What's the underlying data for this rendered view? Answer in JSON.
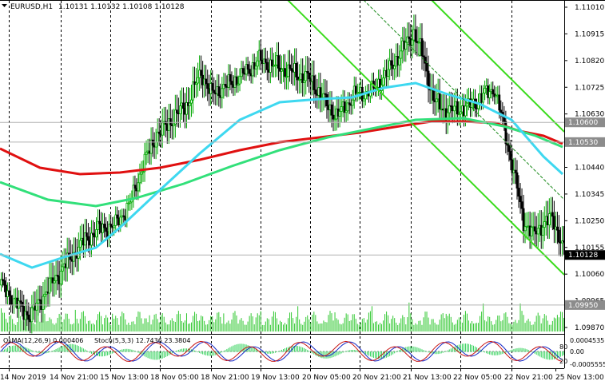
{
  "header": {
    "symbol": "EURUSD,H1",
    "ohlc": "1.10131 1.10132 1.10108 1.10128"
  },
  "price_axis": {
    "labels": [
      "1.11010",
      "1.10915",
      "1.10820",
      "1.10725",
      "1.10630",
      "1.10440",
      "1.10345",
      "1.10250",
      "1.10155",
      "1.10060",
      "1.09965",
      "1.09870"
    ],
    "tags": [
      {
        "text": "1.10600",
        "color": "#8c8c8c"
      },
      {
        "text": "1.10530",
        "color": "#8c8c8c"
      },
      {
        "text": "1.10128",
        "color": "#000000"
      },
      {
        "text": "1.09950",
        "color": "#8c8c8c"
      }
    ]
  },
  "time_axis": {
    "labels": [
      "14 Nov 2019",
      "14 Nov 21:00",
      "15 Nov 13:00",
      "18 Nov 05:00",
      "18 Nov 21:00",
      "19 Nov 13:00",
      "20 Nov 05:00",
      "20 Nov 21:00",
      "21 Nov 13:00",
      "22 Nov 05:00",
      "22 Nov 21:00",
      "25 Nov 13:00"
    ]
  },
  "indicators": {
    "osma_label": "OsMA(12,26,9) 0.000406",
    "stoch_label": "Stoch(5,3,3) 12.7436 23.3804",
    "osma_axis": [
      "0.0004535",
      "0.00",
      "-0.0005555"
    ],
    "stoch_axis": [
      "80",
      "20"
    ]
  },
  "colors": {
    "bull": "#00a800",
    "bear": "#000000",
    "ema_red": "#e01010",
    "ema_green": "#32e07a",
    "ema_cyan": "#3ed8f0",
    "channel": "#3cdc1e",
    "volume": "#32c832"
  }
}
